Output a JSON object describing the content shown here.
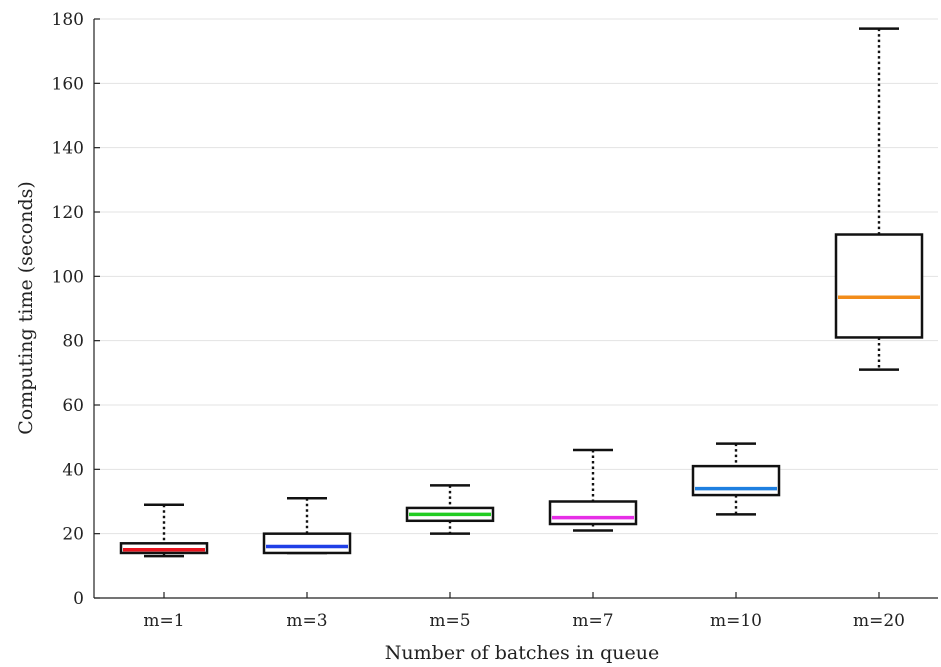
{
  "chart_data": {
    "type": "box",
    "title": "",
    "xlabel": "Number of batches in queue",
    "ylabel": "Computing time (seconds)",
    "ylim": [
      0,
      180
    ],
    "yticks": [
      0,
      20,
      40,
      60,
      80,
      100,
      120,
      140,
      160,
      180
    ],
    "grid": true,
    "categories": [
      "m=1",
      "m=3",
      "m=5",
      "m=7",
      "m=10",
      "m=20"
    ],
    "boxes": [
      {
        "category": "m=1",
        "min": 13,
        "q1": 14,
        "median": 15,
        "q3": 17,
        "max": 29,
        "color": "#e8141e"
      },
      {
        "category": "m=3",
        "min": 14,
        "q1": 14,
        "median": 16,
        "q3": 20,
        "max": 31,
        "color": "#1f3fe6"
      },
      {
        "category": "m=5",
        "min": 20,
        "q1": 24,
        "median": 26,
        "q3": 28,
        "max": 35,
        "color": "#22cc22"
      },
      {
        "category": "m=7",
        "min": 21,
        "q1": 23,
        "median": 25,
        "q3": 30,
        "max": 46,
        "color": "#e62ee6"
      },
      {
        "category": "m=10",
        "min": 26,
        "q1": 32,
        "median": 34,
        "q3": 41,
        "max": 48,
        "color": "#1e7fe0"
      },
      {
        "category": "m=20",
        "min": 71,
        "q1": 81,
        "median": 93.5,
        "q3": 113,
        "max": 177,
        "color": "#f28c1a"
      }
    ]
  }
}
